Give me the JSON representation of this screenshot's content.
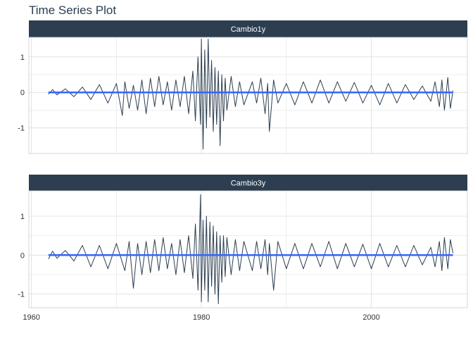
{
  "title": "Time Series Plot",
  "colors": {
    "strip": "#2c3e50",
    "series_line": "#2c3e50",
    "smooth_line": "#3366ff",
    "grid": "#dcdcdc",
    "panel_border": "#cccccc"
  },
  "chart_data": {
    "type": "line",
    "title": "Time Series Plot",
    "xlabel": "",
    "ylabel": "",
    "xlim": [
      1959.7,
      2011.3
    ],
    "x_ticks": [
      1960,
      1980,
      2000
    ],
    "x_tick_labels": [
      "1960",
      "1980",
      "2000"
    ],
    "x_range": [
      1962.0,
      2009.6
    ],
    "grid": true,
    "panels": [
      {
        "name": "Cambio1y",
        "ylim": [
          -1.72,
          1.55
        ],
        "y_ticks": [
          -1,
          0,
          1
        ],
        "y_tick_labels": [
          "-1",
          "0",
          "1"
        ],
        "smooth_value": 0,
        "series": {
          "x": [
            1962.0,
            1962.5,
            1963.0,
            1964.0,
            1965.0,
            1966.0,
            1967.0,
            1968.0,
            1969.0,
            1970.0,
            1970.7,
            1971.0,
            1971.5,
            1972.0,
            1972.5,
            1973.0,
            1973.5,
            1974.0,
            1974.5,
            1975.0,
            1975.5,
            1976.0,
            1976.5,
            1977.0,
            1977.5,
            1978.0,
            1978.5,
            1979.0,
            1979.3,
            1979.6,
            1979.9,
            1980.0,
            1980.2,
            1980.4,
            1980.6,
            1980.8,
            1981.0,
            1981.2,
            1981.4,
            1981.6,
            1981.8,
            1982.0,
            1982.2,
            1982.4,
            1982.6,
            1982.8,
            1983.0,
            1983.5,
            1984.0,
            1984.5,
            1985.0,
            1986.0,
            1986.5,
            1987.0,
            1987.5,
            1987.8,
            1988.0,
            1988.5,
            1989.0,
            1990.0,
            1991.0,
            1992.0,
            1993.0,
            1994.0,
            1995.0,
            1996.0,
            1997.0,
            1998.0,
            1999.0,
            2000.0,
            2001.0,
            2002.0,
            2003.0,
            2004.0,
            2005.0,
            2006.0,
            2007.0,
            2007.5,
            2008.0,
            2008.3,
            2008.6,
            2009.0,
            2009.3,
            2009.6
          ],
          "values": [
            -0.05,
            0.08,
            -0.07,
            0.1,
            -0.12,
            0.15,
            -0.2,
            0.22,
            -0.3,
            0.25,
            -0.65,
            0.3,
            -0.45,
            0.2,
            -0.5,
            0.35,
            -0.6,
            0.4,
            -0.4,
            0.45,
            -0.35,
            0.3,
            -0.5,
            0.35,
            -0.4,
            0.45,
            -0.6,
            0.6,
            -0.8,
            1.0,
            -0.9,
            1.5,
            -1.6,
            1.2,
            -1.0,
            1.5,
            -0.7,
            0.9,
            -1.1,
            0.7,
            -0.9,
            0.6,
            -1.5,
            0.5,
            -0.8,
            0.4,
            -0.5,
            0.45,
            -0.4,
            0.3,
            -0.35,
            0.3,
            -0.3,
            0.4,
            -0.6,
            0.25,
            -1.1,
            0.35,
            -0.3,
            0.25,
            -0.35,
            0.3,
            -0.3,
            0.35,
            -0.3,
            0.3,
            -0.25,
            0.28,
            -0.3,
            0.2,
            -0.35,
            0.25,
            -0.3,
            0.22,
            -0.2,
            0.18,
            -0.25,
            0.3,
            -0.4,
            0.35,
            -0.5,
            0.42,
            -0.45,
            0.05
          ]
        }
      },
      {
        "name": "Cambio3y",
        "ylim": [
          -1.35,
          1.65
        ],
        "y_ticks": [
          -1,
          0,
          1
        ],
        "y_tick_labels": [
          "-1",
          "0",
          "1"
        ],
        "smooth_value": 0,
        "series": {
          "x": [
            1962.0,
            1962.5,
            1963.0,
            1964.0,
            1965.0,
            1966.0,
            1967.0,
            1968.0,
            1969.0,
            1970.0,
            1971.0,
            1971.5,
            1972.0,
            1972.5,
            1973.0,
            1973.5,
            1974.0,
            1974.5,
            1975.0,
            1975.5,
            1976.0,
            1976.5,
            1977.0,
            1977.5,
            1978.0,
            1978.5,
            1979.0,
            1979.3,
            1979.6,
            1979.9,
            1980.0,
            1980.2,
            1980.4,
            1980.6,
            1980.8,
            1981.0,
            1981.2,
            1981.4,
            1981.6,
            1981.8,
            1982.0,
            1982.2,
            1982.4,
            1982.6,
            1982.8,
            1983.0,
            1983.5,
            1984.0,
            1984.5,
            1985.0,
            1986.0,
            1986.5,
            1987.0,
            1987.5,
            1987.8,
            1988.0,
            1988.5,
            1989.0,
            1990.0,
            1991.0,
            1992.0,
            1993.0,
            1994.0,
            1995.0,
            1996.0,
            1997.0,
            1998.0,
            1999.0,
            2000.0,
            2001.0,
            2002.0,
            2003.0,
            2004.0,
            2005.0,
            2006.0,
            2007.0,
            2007.5,
            2008.0,
            2008.3,
            2008.6,
            2009.0,
            2009.3,
            2009.6
          ],
          "values": [
            -0.1,
            0.1,
            -0.08,
            0.12,
            -0.15,
            0.25,
            -0.3,
            0.25,
            -0.35,
            0.3,
            -0.4,
            0.35,
            -0.85,
            0.3,
            -0.5,
            0.35,
            -0.45,
            0.4,
            -0.4,
            0.45,
            -0.35,
            0.3,
            -0.5,
            0.4,
            -0.45,
            0.5,
            -0.6,
            0.8,
            -0.9,
            1.55,
            -1.2,
            0.9,
            -0.9,
            1.0,
            -1.2,
            0.85,
            -0.8,
            0.75,
            -1.0,
            0.6,
            -1.25,
            0.5,
            -0.7,
            0.5,
            -0.55,
            0.45,
            -0.5,
            0.4,
            -0.4,
            0.35,
            -0.4,
            0.35,
            -0.35,
            0.4,
            -0.5,
            0.3,
            -0.9,
            0.35,
            -0.35,
            0.3,
            -0.35,
            0.3,
            -0.3,
            0.35,
            -0.35,
            0.3,
            -0.3,
            0.28,
            -0.35,
            0.3,
            -0.3,
            0.25,
            -0.3,
            0.25,
            -0.25,
            0.2,
            -0.3,
            0.35,
            -0.4,
            0.45,
            -0.35,
            0.4,
            0.05
          ]
        }
      }
    ]
  }
}
